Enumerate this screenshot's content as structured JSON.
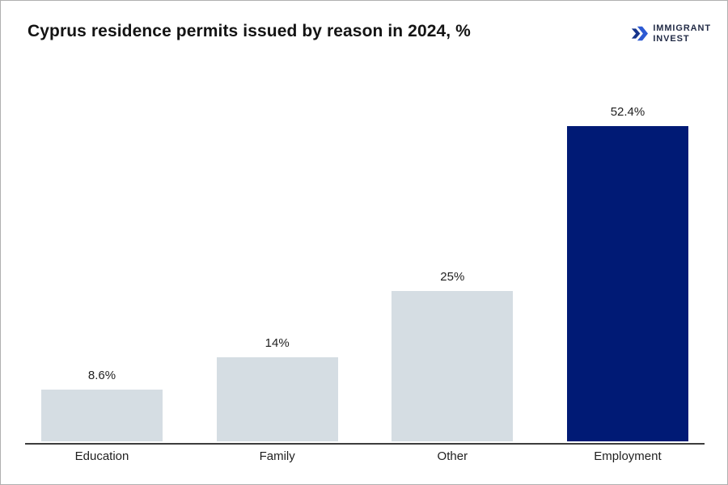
{
  "header": {
    "title": "Cyprus residence permits issued by reason in 2024, %",
    "logo": {
      "line1": "IMMIGRANT",
      "line2": "INVEST"
    }
  },
  "colors": {
    "bar_default": "#d5dde3",
    "bar_highlight": "#001a75",
    "axis": "#3d3d3d",
    "text": "#1f1f1f",
    "logo_text": "#232c47",
    "logo_icon_dark": "#16348c",
    "logo_icon_light": "#2d5ad3"
  },
  "chart_data": {
    "type": "bar",
    "title": "Cyprus residence permits issued by reason in 2024, %",
    "categories": [
      "Education",
      "Family",
      "Other",
      "Employment"
    ],
    "values": [
      8.6,
      14,
      25,
      52.4
    ],
    "value_labels": [
      "8.6%",
      "14%",
      "25%",
      "52.4%"
    ],
    "highlight_category": "Employment",
    "xlabel": "",
    "ylabel": "",
    "ylim": [
      0,
      55
    ],
    "grid": false,
    "legend": false
  }
}
